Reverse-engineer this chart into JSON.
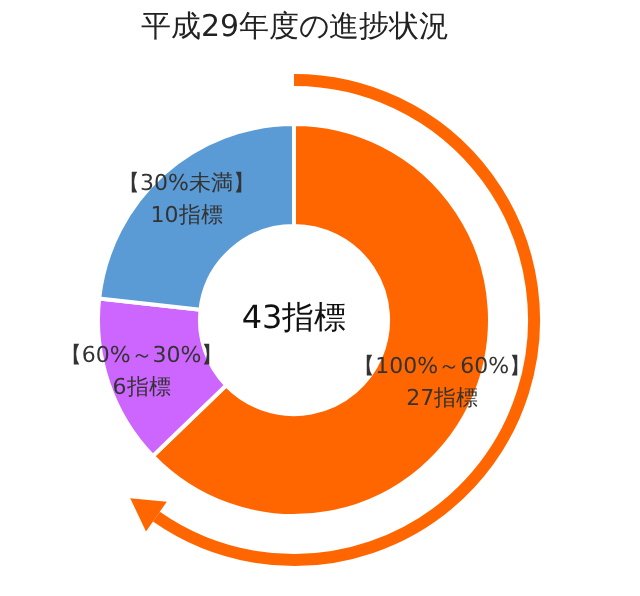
{
  "chart_data": {
    "type": "donut",
    "title": "平成29年度の進捗状況",
    "categories": [
      "【100%～60%】",
      "【60%～30%】",
      "【30%未満】"
    ],
    "values": [
      27,
      6,
      10
    ],
    "value_labels": [
      "27指標",
      "6指標",
      "10指標"
    ],
    "colors": [
      "#ff6600",
      "#cc66ff",
      "#5b9bd5"
    ],
    "annotations": [
      "43指標"
    ]
  }
}
